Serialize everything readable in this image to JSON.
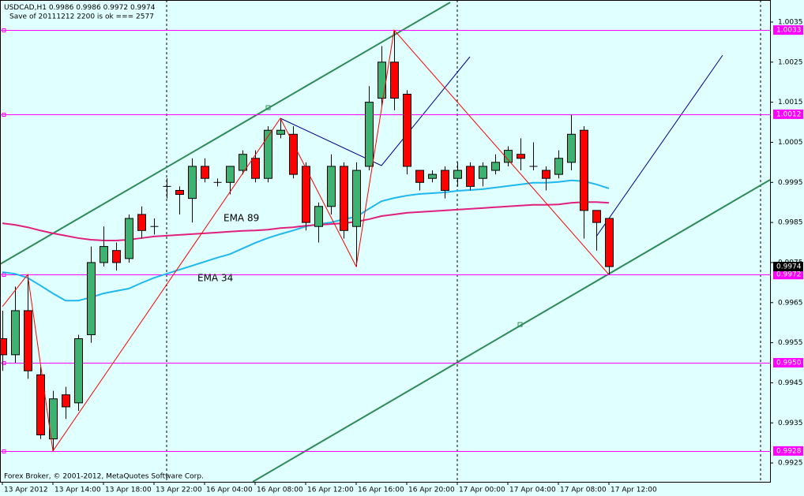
{
  "chart_data": {
    "type": "candlestick",
    "symbol": "USDCAD,H1",
    "status": "Save of 20111212 2200 is ok === 2577",
    "copyright": "Forex Broker, © 2001-2012, MetaQuotes Software Corp.",
    "categories": [
      "13 Apr 2012",
      null,
      null,
      null,
      "13 Apr 14:00",
      null,
      null,
      null,
      "13 Apr 18:00",
      null,
      null,
      null,
      "13 Apr 22:00",
      null,
      null,
      null,
      "16 Apr 04:00",
      null,
      null,
      null,
      "16 Apr 08:00",
      null,
      null,
      null,
      "16 Apr 12:00",
      null,
      null,
      null,
      "16 Apr 16:00",
      null,
      null,
      null,
      "16 Apr 20:00",
      null,
      null,
      null,
      "17 Apr 00:00",
      null,
      null,
      null,
      "17 Apr 04:00",
      null,
      null,
      null,
      "17 Apr 08:00",
      null,
      null,
      null,
      "17 Apr 12:00"
    ],
    "open": [
      0.9956,
      0.9952,
      0.9963,
      0.9947,
      0.9931,
      0.9942,
      0.994,
      0.9957,
      0.9975,
      0.9978,
      0.9976,
      0.9987,
      0.9984,
      0.9994,
      0.9993,
      0.9991,
      0.9999,
      0.9995,
      0.9995,
      0.9998,
      1.0001,
      0.9996,
      1.0007,
      1.0007,
      0.9999,
      0.9984,
      0.9989,
      0.9999,
      0.9984,
      0.9999,
      1.0016,
      1.0025,
      1.0017,
      0.9998,
      0.9996,
      0.9998,
      0.9996,
      0.9999,
      0.9996,
      0.9998,
      1.0,
      1.0002,
      0.9999,
      0.9998,
      0.9997,
      1.0,
      1.0008,
      0.9988,
      0.9986
    ],
    "high": [
      0.9963,
      0.9969,
      0.9972,
      0.9949,
      0.9943,
      0.9944,
      0.9957,
      0.9979,
      0.9984,
      0.998,
      0.9987,
      0.9989,
      0.9986,
      0.9996,
      0.9994,
      1.0001,
      1.0001,
      0.9996,
      0.9999,
      1.0003,
      1.0003,
      1.0009,
      1.0011,
      1.0009,
      1.0,
      0.999,
      1.0002,
      1.0,
      1.0,
      1.0019,
      1.0029,
      1.0033,
      1.0018,
      0.9998,
      0.9998,
      0.9999,
      1.0,
      1.0,
      1.0,
      1.0002,
      1.0004,
      1.0006,
      1.0005,
      0.9999,
      1.0003,
      1.0012,
      1.0009,
      0.9988,
      0.9986
    ],
    "low": [
      0.9948,
      0.995,
      0.9946,
      0.9931,
      0.9928,
      0.9936,
      0.9938,
      0.9955,
      0.9974,
      0.9973,
      0.9975,
      0.9981,
      0.9982,
      0.9991,
      0.9987,
      0.9985,
      0.9995,
      0.9994,
      0.9992,
      0.9997,
      0.9995,
      0.9995,
      1.0006,
      0.9996,
      0.9983,
      0.998,
      0.9987,
      0.9981,
      0.9974,
      0.9998,
      1.0014,
      1.0013,
      0.9997,
      0.9993,
      0.9995,
      0.9991,
      0.9994,
      0.9993,
      0.9994,
      0.9997,
      0.9999,
      0.9998,
      0.9998,
      0.9993,
      0.9996,
      0.9998,
      0.9981,
      0.9978,
      0.9972
    ],
    "close": [
      0.9952,
      0.9963,
      0.9948,
      0.9932,
      0.9941,
      0.9939,
      0.9956,
      0.9975,
      0.9979,
      0.9975,
      0.9986,
      0.9983,
      0.9984,
      0.9994,
      0.9992,
      0.9999,
      0.9996,
      0.9995,
      0.9999,
      1.0002,
      0.9996,
      1.0008,
      1.0008,
      0.9997,
      0.9985,
      0.9989,
      0.9999,
      0.9983,
      0.9998,
      1.0015,
      1.0025,
      1.0016,
      0.9999,
      0.9995,
      0.9997,
      0.9993,
      0.9998,
      0.9994,
      0.9999,
      1.0,
      1.0003,
      1.0001,
      0.9999,
      0.9996,
      1.0001,
      1.0007,
      0.9988,
      0.9985,
      0.9974
    ],
    "up_color": "#3cb371",
    "down_color": "#ff0000",
    "series": [
      {
        "name": "EMA 34",
        "color": "#1fb8ee",
        "values": [
          0.99726,
          0.99722,
          0.99712,
          0.99693,
          0.99673,
          0.99655,
          0.99655,
          0.99663,
          0.99673,
          0.99679,
          0.99685,
          0.99699,
          0.99712,
          0.99722,
          0.99732,
          0.99742,
          0.99752,
          0.99762,
          0.99771,
          0.99785,
          0.99799,
          0.99811,
          0.99821,
          0.9983,
          0.9984,
          0.99846,
          0.9985,
          0.99858,
          0.99864,
          0.99884,
          0.99903,
          0.99911,
          0.99917,
          0.99921,
          0.99923,
          0.99925,
          0.99929,
          0.99931,
          0.99933,
          0.99937,
          0.99941,
          0.99945,
          0.99949,
          0.99949,
          0.99951,
          0.99955,
          0.99953,
          0.99945,
          0.99935
        ]
      },
      {
        "name": "EMA 89",
        "color": "#e0207e",
        "values": [
          0.99848,
          0.99844,
          0.99838,
          0.9983,
          0.99823,
          0.99817,
          0.99811,
          0.99807,
          0.99805,
          0.99805,
          0.99807,
          0.99811,
          0.99815,
          0.99817,
          0.99819,
          0.99821,
          0.99823,
          0.99825,
          0.99827,
          0.99829,
          0.9983,
          0.99832,
          0.99836,
          0.99838,
          0.99842,
          0.99844,
          0.99846,
          0.99848,
          0.99852,
          0.99858,
          0.99866,
          0.9987,
          0.99874,
          0.99876,
          0.99878,
          0.9988,
          0.99882,
          0.99884,
          0.99886,
          0.99888,
          0.9989,
          0.99892,
          0.99894,
          0.99894,
          0.99895,
          0.99899,
          0.99901,
          0.99901,
          0.99899
        ]
      }
    ],
    "zigzag": {
      "color": "#ff0000",
      "x": [
        0,
        2,
        4,
        22,
        28,
        31,
        48
      ],
      "values": [
        0.9964,
        0.9972,
        0.9928,
        1.0011,
        0.9974,
        1.0033,
        0.9972
      ]
    },
    "levels": [
      1.0033,
      1.0012,
      0.9972,
      {
        "value": 0.995,
        "label": "0.9950"
      },
      0.9928
    ],
    "level_color": "#ff00ff",
    "ylim": [
      0.99203,
      1.00405
    ],
    "yticks": [
      1.0035,
      1.0025,
      1.0015,
      1.0005,
      0.9995,
      0.9985,
      0.9975,
      0.9965,
      0.9955,
      0.9945,
      0.9935,
      0.9925
    ]
  }
}
